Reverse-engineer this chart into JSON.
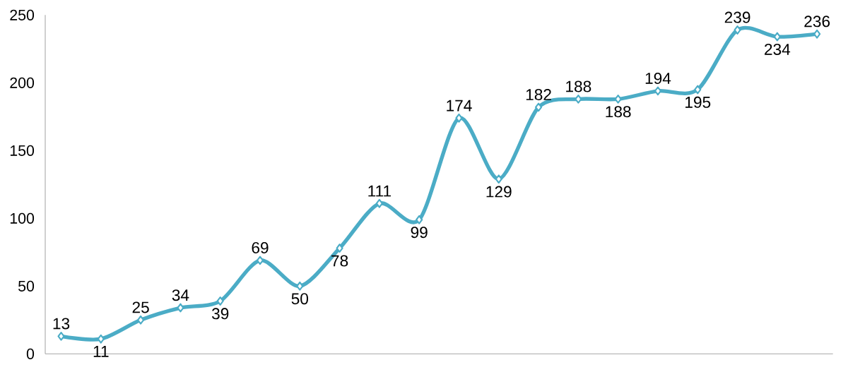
{
  "chart_data": {
    "type": "line",
    "categories": [
      null,
      null,
      null,
      null,
      null,
      null,
      null,
      null,
      null,
      null,
      null,
      null,
      null,
      null,
      null,
      null,
      null,
      null,
      null,
      null
    ],
    "series": [
      {
        "color": "#4bacc6",
        "values": [
          13,
          11,
          25,
          34,
          39,
          69,
          50,
          78,
          111,
          99,
          174,
          129,
          182,
          188,
          188,
          194,
          195,
          239,
          234,
          236
        ]
      }
    ],
    "ylim": [
      0,
      250
    ],
    "yticks": [
      0,
      50,
      100,
      150,
      200,
      250
    ],
    "marker": "diamond",
    "data_labels": true,
    "grid": false
  }
}
